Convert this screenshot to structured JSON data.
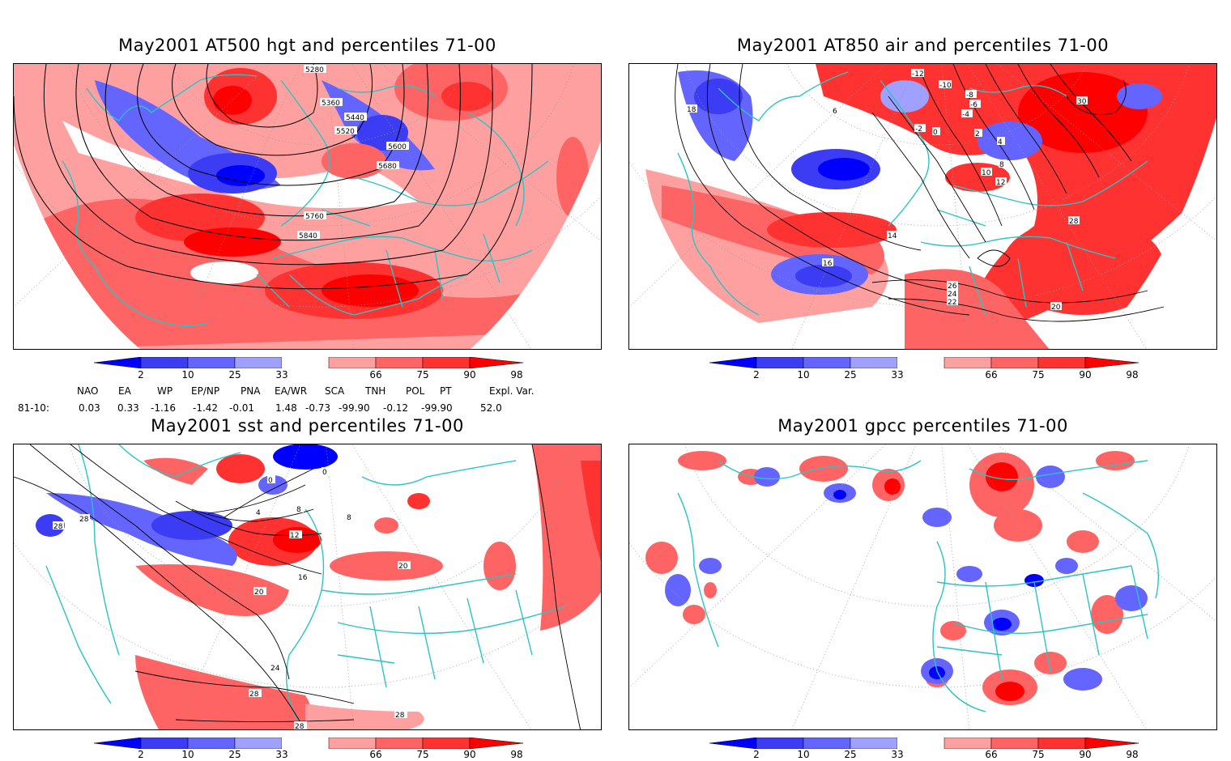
{
  "panels": [
    {
      "id": "at500",
      "title": "May2001 AT500 hgt and percentiles 71-00",
      "contour_labels": [
        "5280",
        "5360",
        "5440",
        "5520",
        "5600",
        "5680",
        "5760",
        "5840"
      ]
    },
    {
      "id": "at850",
      "title": "May2001 AT850 air and percentiles 71-00",
      "contour_labels": [
        "-12",
        "-10",
        "-8",
        "-6",
        "-4",
        "-2",
        "0",
        "2",
        "4",
        "6",
        "8",
        "10",
        "12",
        "14",
        "16",
        "18",
        "20",
        "22",
        "24",
        "26",
        "28",
        "30"
      ]
    },
    {
      "id": "sst",
      "title": "May2001 sst and percentiles 71-00",
      "contour_labels": [
        "0",
        "4",
        "8",
        "12",
        "16",
        "20",
        "24",
        "28"
      ]
    },
    {
      "id": "gpcc",
      "title": "May2001 gpcc percentiles 71-00",
      "contour_labels": []
    }
  ],
  "colorbar": {
    "labels": [
      "2",
      "10",
      "25",
      "33",
      "66",
      "75",
      "90",
      "98"
    ],
    "colors": [
      "#0000ff",
      "#3c3cf5",
      "#6464ff",
      "#a0a0ff",
      "#ffffff",
      "#ffa0a0",
      "#ff6464",
      "#ff3232",
      "#ff0000"
    ]
  },
  "indices": {
    "headers": [
      "NAO",
      "EA",
      "WP",
      "EP/NP",
      "PNA",
      "EA/WR",
      "SCA",
      "TNH",
      "POL",
      "PT",
      "Expl. Var."
    ],
    "row_label": "81-10:",
    "values": [
      "0.03",
      "0.33",
      "-1.16",
      "-1.42",
      "-0.01",
      "1.48",
      "-0.73",
      "-99.90",
      "-0.12",
      "-99.90",
      "52.0"
    ]
  },
  "colors": {
    "border": "#2ac4c4",
    "contour": "#000000",
    "grid": "#999999"
  }
}
